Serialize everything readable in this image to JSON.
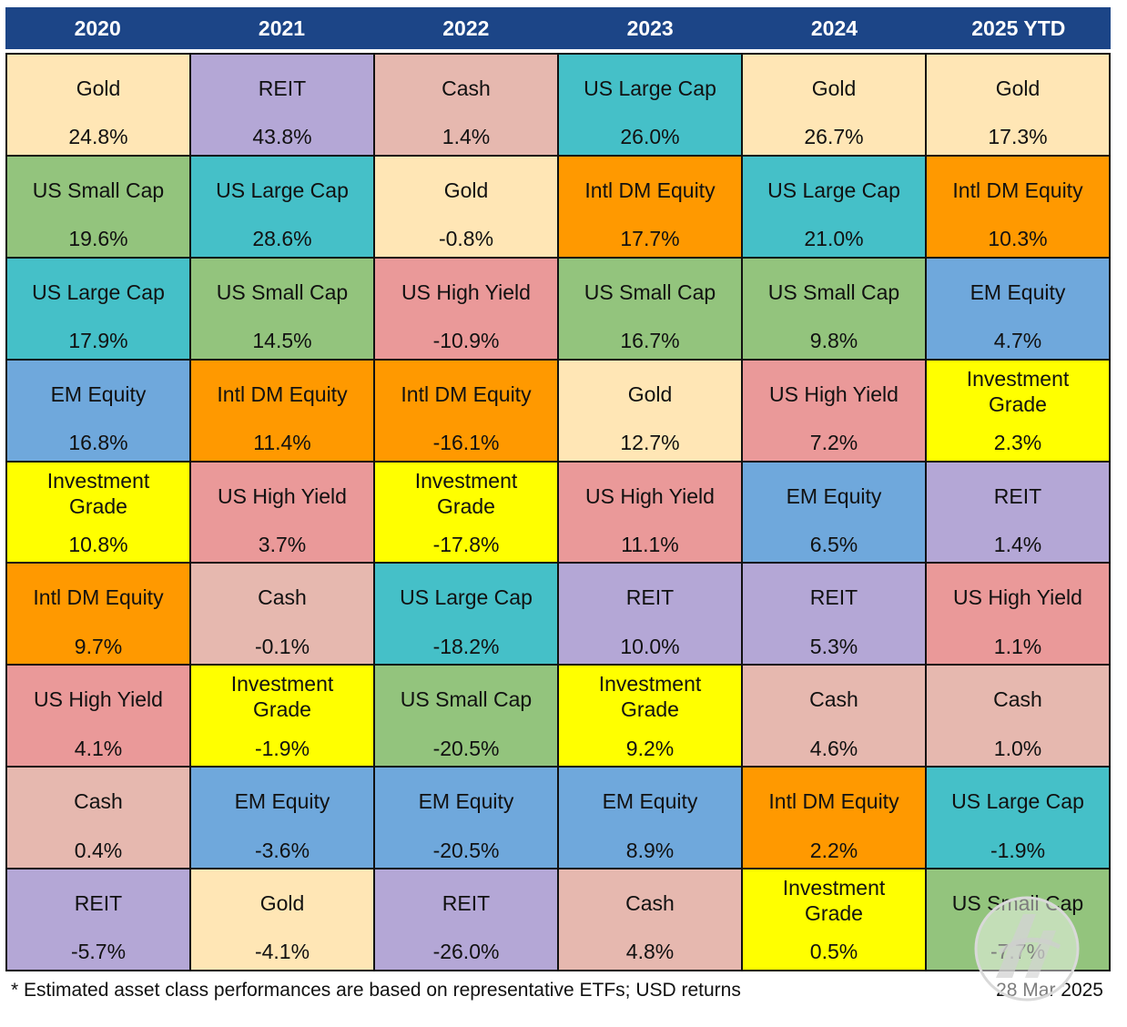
{
  "colors": {
    "header_bg": "#1c4587",
    "Gold": "#ffe6b5",
    "REIT": "#b4a7d6",
    "Cash": "#e6b8af",
    "US Large Cap": "#45c0c8",
    "US Small Cap": "#93c47d",
    "Intl DM Equity": "#ff9900",
    "US High Yield": "#ea9999",
    "EM Equity": "#6fa8dc",
    "Investment Grade": "#ffff00"
  },
  "chart_data": {
    "type": "table",
    "columns": [
      "2020",
      "2021",
      "2022",
      "2023",
      "2024",
      "2025 YTD"
    ],
    "rows": [
      [
        {
          "asset": "Gold",
          "return": "24.8%"
        },
        {
          "asset": "REIT",
          "return": "43.8%"
        },
        {
          "asset": "Cash",
          "return": "1.4%"
        },
        {
          "asset": "US Large Cap",
          "return": "26.0%"
        },
        {
          "asset": "Gold",
          "return": "26.7%"
        },
        {
          "asset": "Gold",
          "return": "17.3%"
        }
      ],
      [
        {
          "asset": "US Small Cap",
          "return": "19.6%"
        },
        {
          "asset": "US Large Cap",
          "return": "28.6%"
        },
        {
          "asset": "Gold",
          "return": "-0.8%"
        },
        {
          "asset": "Intl DM Equity",
          "return": "17.7%"
        },
        {
          "asset": "US Large Cap",
          "return": "21.0%"
        },
        {
          "asset": "Intl DM Equity",
          "return": "10.3%"
        }
      ],
      [
        {
          "asset": "US Large Cap",
          "return": "17.9%"
        },
        {
          "asset": "US Small Cap",
          "return": "14.5%"
        },
        {
          "asset": "US High Yield",
          "return": "-10.9%"
        },
        {
          "asset": "US Small Cap",
          "return": "16.7%"
        },
        {
          "asset": "US Small Cap",
          "return": "9.8%"
        },
        {
          "asset": "EM Equity",
          "return": "4.7%"
        }
      ],
      [
        {
          "asset": "EM Equity",
          "return": "16.8%"
        },
        {
          "asset": "Intl DM Equity",
          "return": "11.4%"
        },
        {
          "asset": "Intl DM Equity",
          "return": "-16.1%"
        },
        {
          "asset": "Gold",
          "return": "12.7%"
        },
        {
          "asset": "US High Yield",
          "return": "7.2%"
        },
        {
          "asset": "Investment Grade",
          "return": "2.3%"
        }
      ],
      [
        {
          "asset": "Investment Grade",
          "return": "10.8%"
        },
        {
          "asset": "US High Yield",
          "return": "3.7%"
        },
        {
          "asset": "Investment Grade",
          "return": "-17.8%"
        },
        {
          "asset": "US High Yield",
          "return": "11.1%"
        },
        {
          "asset": "EM Equity",
          "return": "6.5%"
        },
        {
          "asset": "REIT",
          "return": "1.4%"
        }
      ],
      [
        {
          "asset": "Intl DM Equity",
          "return": "9.7%"
        },
        {
          "asset": "Cash",
          "return": "-0.1%"
        },
        {
          "asset": "US Large Cap",
          "return": "-18.2%"
        },
        {
          "asset": "REIT",
          "return": "10.0%"
        },
        {
          "asset": "REIT",
          "return": "5.3%"
        },
        {
          "asset": "US High Yield",
          "return": "1.1%"
        }
      ],
      [
        {
          "asset": "US High Yield",
          "return": "4.1%"
        },
        {
          "asset": "Investment Grade",
          "return": "-1.9%"
        },
        {
          "asset": "US Small Cap",
          "return": "-20.5%"
        },
        {
          "asset": "Investment Grade",
          "return": "9.2%"
        },
        {
          "asset": "Cash",
          "return": "4.6%"
        },
        {
          "asset": "Cash",
          "return": "1.0%"
        }
      ],
      [
        {
          "asset": "Cash",
          "return": "0.4%"
        },
        {
          "asset": "EM Equity",
          "return": "-3.6%"
        },
        {
          "asset": "EM Equity",
          "return": "-20.5%"
        },
        {
          "asset": "EM Equity",
          "return": "8.9%"
        },
        {
          "asset": "Intl DM Equity",
          "return": "2.2%"
        },
        {
          "asset": "US Large Cap",
          "return": "-1.9%"
        }
      ],
      [
        {
          "asset": "REIT",
          "return": "-5.7%"
        },
        {
          "asset": "Gold",
          "return": "-4.1%"
        },
        {
          "asset": "REIT",
          "return": "-26.0%"
        },
        {
          "asset": "Cash",
          "return": "4.8%"
        },
        {
          "asset": "Investment Grade",
          "return": "0.5%"
        },
        {
          "asset": "US Small Cap",
          "return": "-7.7%"
        }
      ]
    ]
  },
  "footer": {
    "note": "* Estimated asset class performances are based on representative ETFs; USD returns",
    "date": "28 Mar 2025"
  },
  "watermark": {
    "icon": "logo-watermark-icon"
  }
}
